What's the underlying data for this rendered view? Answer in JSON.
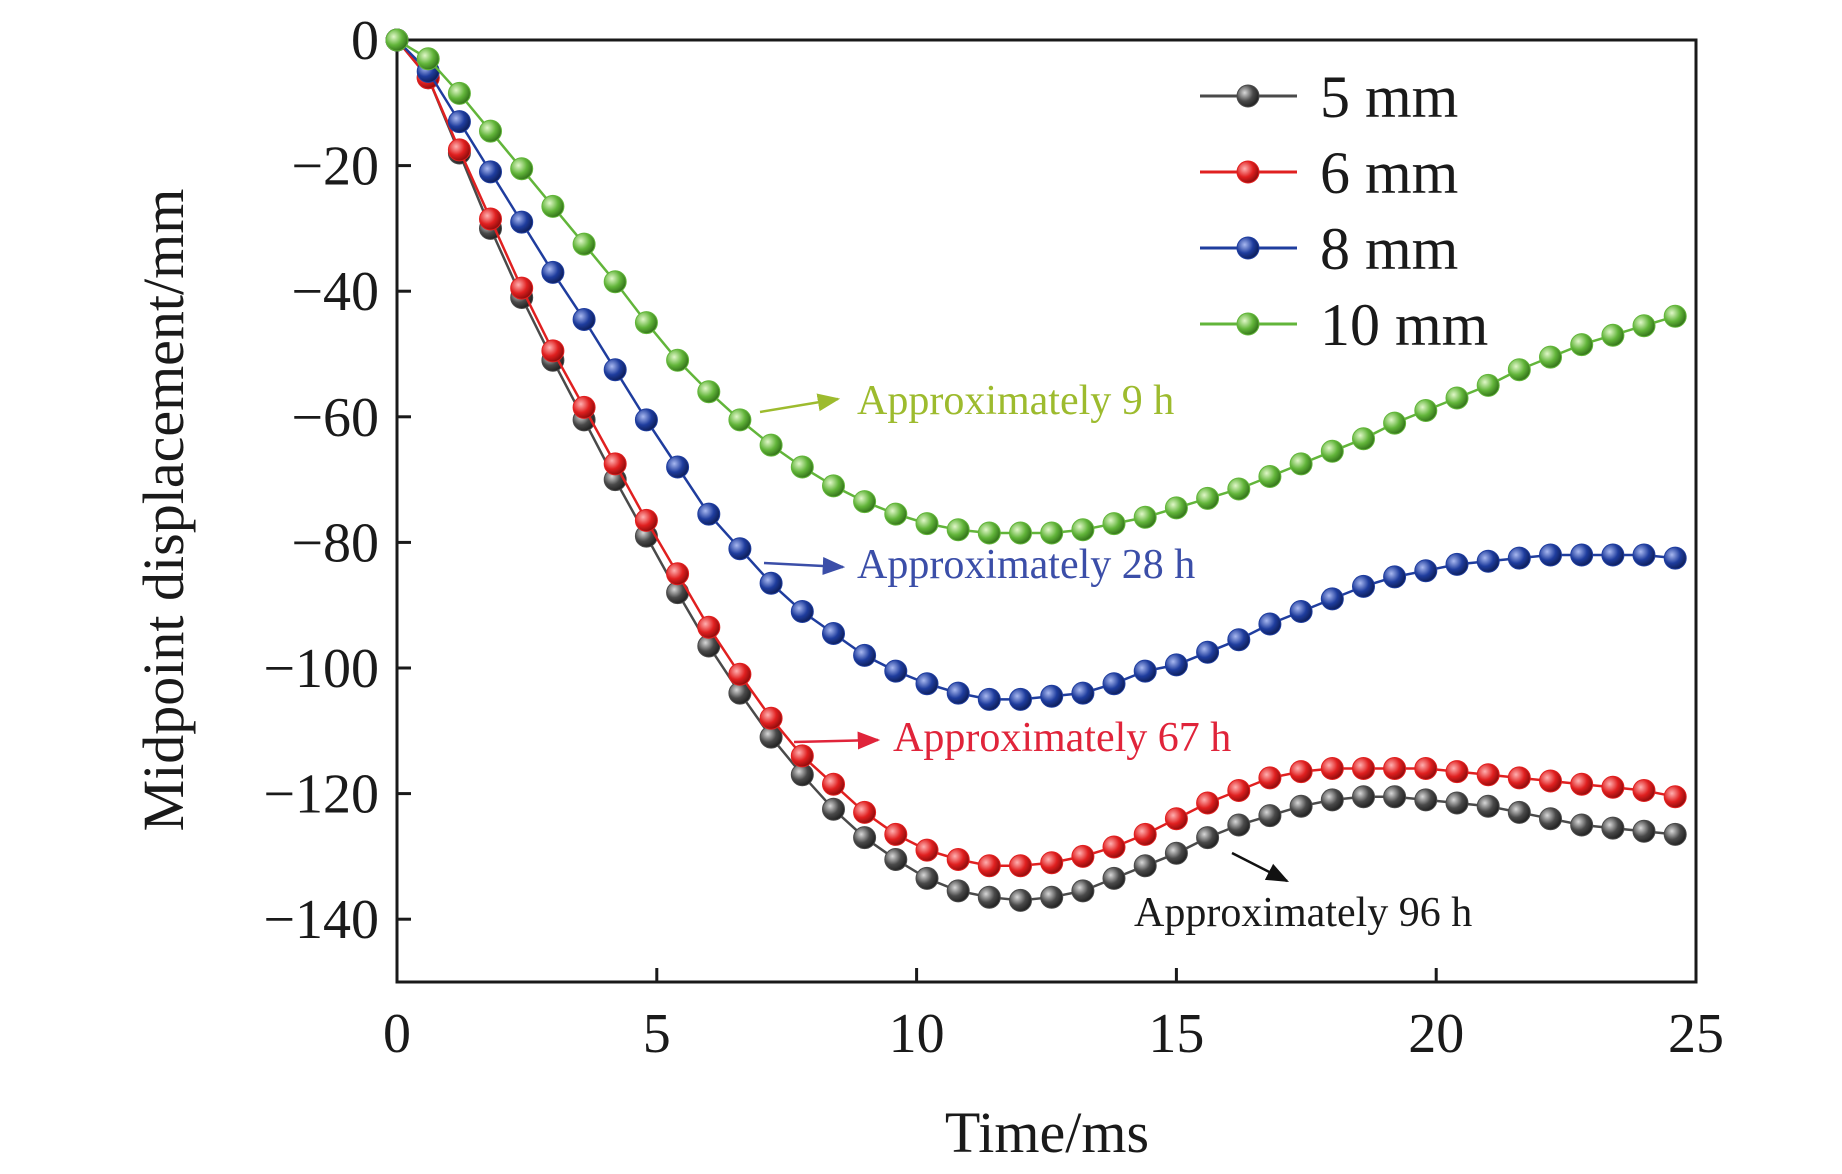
{
  "chart_data": {
    "type": "line",
    "xlabel": "Time/ms",
    "ylabel": "Midpoint displacement/mm",
    "xlim": [
      0,
      25
    ],
    "ylim": [
      -150,
      0
    ],
    "xticks": [
      0,
      5,
      10,
      15,
      20,
      25
    ],
    "yticks": [
      0,
      -20,
      -40,
      -60,
      -80,
      -100,
      -120,
      -140
    ],
    "xtick_labels": [
      "0",
      "5",
      "10",
      "15",
      "20",
      "25"
    ],
    "ytick_labels": [
      "0",
      "−20",
      "−40",
      "−60",
      "−80",
      "−100",
      "−120",
      "−140"
    ],
    "grid": false,
    "legend_position": "top-right",
    "x": [
      0,
      0.6,
      1.2,
      1.8,
      2.4,
      3.0,
      3.6,
      4.2,
      4.8,
      5.4,
      6.0,
      6.6,
      7.2,
      7.8,
      8.4,
      9.0,
      9.6,
      10.2,
      10.8,
      11.4,
      12.0,
      12.6,
      13.2,
      13.8,
      14.4,
      15.0,
      15.6,
      16.2,
      16.8,
      17.4,
      18.0,
      18.6,
      19.2,
      19.8,
      20.4,
      21.0,
      21.6,
      22.2,
      22.8,
      23.4,
      24.0,
      24.6
    ],
    "series": [
      {
        "name": "5 mm",
        "color": "#4a4a4a",
        "values": [
          0,
          -6,
          -18,
          -30,
          -41,
          -51,
          -60.5,
          -70,
          -79,
          -88,
          -96.5,
          -104,
          -111,
          -117,
          -122.5,
          -127,
          -130.5,
          -133.5,
          -135.5,
          -136.5,
          -137,
          -136.5,
          -135.5,
          -133.5,
          -131.5,
          -129.5,
          -127,
          -125,
          -123.5,
          -122,
          -121,
          -120.5,
          -120.5,
          -121,
          -121.5,
          -122,
          -123,
          -124,
          -125,
          -125.5,
          -126,
          -126.5
        ]
      },
      {
        "name": "6 mm",
        "color": "#e02020",
        "values": [
          0,
          -6,
          -17.5,
          -28.5,
          -39.5,
          -49.5,
          -58.5,
          -67.5,
          -76.5,
          -85,
          -93.5,
          -101,
          -108,
          -114,
          -118.5,
          -123,
          -126.5,
          -129,
          -130.5,
          -131.5,
          -131.5,
          -131,
          -130,
          -128.5,
          -126.5,
          -124,
          -121.5,
          -119.5,
          -117.5,
          -116.5,
          -116,
          -116,
          -116,
          -116,
          -116.5,
          -117,
          -117.5,
          -118,
          -118.5,
          -119,
          -119.5,
          -120.5
        ]
      },
      {
        "name": "8 mm",
        "color": "#1f3d9e",
        "values": [
          0,
          -5,
          -13,
          -21,
          -29,
          -37,
          -44.5,
          -52.5,
          -60.5,
          -68,
          -75.5,
          -81,
          -86.5,
          -91,
          -94.5,
          -98,
          -100.5,
          -102.5,
          -104,
          -105,
          -105,
          -104.5,
          -104,
          -102.5,
          -100.5,
          -99.5,
          -97.5,
          -95.5,
          -93,
          -91,
          -89,
          -87,
          -85.5,
          -84.5,
          -83.5,
          -83,
          -82.5,
          -82,
          -82,
          -82,
          -82,
          -82.5
        ]
      },
      {
        "name": "10 mm",
        "color": "#62b53a",
        "values": [
          0,
          -3,
          -8.5,
          -14.5,
          -20.5,
          -26.5,
          -32.5,
          -38.5,
          -45,
          -51,
          -56,
          -60.5,
          -64.5,
          -68,
          -71,
          -73.5,
          -75.5,
          -77,
          -78,
          -78.5,
          -78.5,
          -78.5,
          -78,
          -77,
          -76,
          -74.5,
          -73,
          -71.5,
          -69.5,
          -67.5,
          -65.5,
          -63.5,
          -61,
          -59,
          -57,
          -55,
          -52.5,
          -50.5,
          -48.5,
          -47,
          -45.5,
          -44
        ]
      }
    ],
    "annotations": [
      {
        "text": "Approximately 9 h",
        "color": "#9dbb2e"
      },
      {
        "text": "Approximately 28 h",
        "color": "#3b4ea8"
      },
      {
        "text": "Approximately 67 h",
        "color": "#e0243a"
      },
      {
        "text": "Approximately 96 h",
        "color": "#1a1a1a"
      }
    ]
  }
}
